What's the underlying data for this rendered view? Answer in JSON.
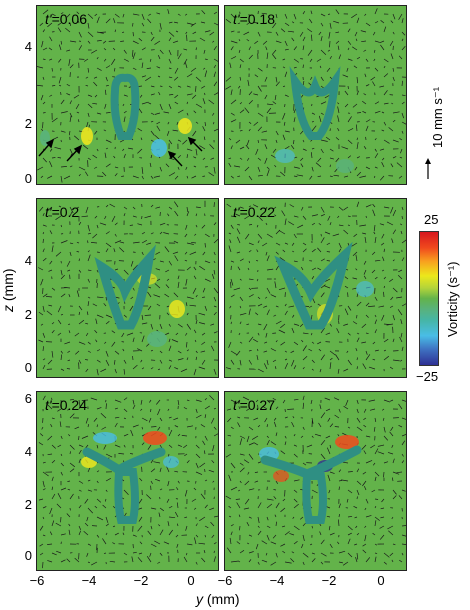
{
  "panels": [
    {
      "label_prefix": "t'",
      "label_value": "=0.06"
    },
    {
      "label_prefix": "t'",
      "label_value": "=0.18"
    },
    {
      "label_prefix": "t'",
      "label_value": "=0.2"
    },
    {
      "label_prefix": "t'",
      "label_value": "=0.22"
    },
    {
      "label_prefix": "t'",
      "label_value": "=0.24"
    },
    {
      "label_prefix": "t'",
      "label_value": "=0.27"
    }
  ],
  "axes": {
    "z_label_var": "z",
    "z_label_unit": " (mm)",
    "y_label_var": "y",
    "y_label_unit": " (mm)",
    "z_ticks": [
      "6",
      "4",
      "2",
      "0"
    ],
    "y_ticks": [
      "−6",
      "−4",
      "−2",
      "0"
    ]
  },
  "colorbar": {
    "max": "25",
    "min": "−25",
    "title": "Vorticity (s⁻¹)"
  },
  "scale_arrow": {
    "label": "10 mm s⁻¹"
  },
  "colors": {
    "background": "#63b34a",
    "body_fill": "#2f8f83",
    "body_edge": "#1c6a68"
  }
}
